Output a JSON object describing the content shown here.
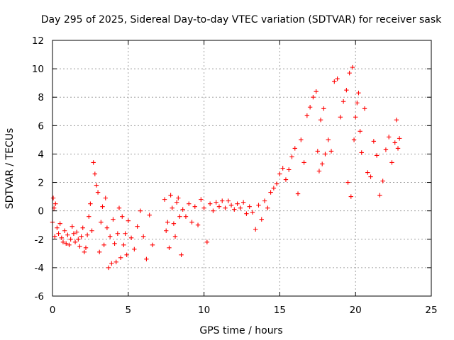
{
  "chart_data": {
    "type": "scatter",
    "title": "Day 295 of 2025, Sidereal Day-to-day VTEC variation (SDTVAR) for receiver sask",
    "xlabel": "GPS time / hours",
    "ylabel": "SDTVAR / TECUs",
    "xlim": [
      0,
      25
    ],
    "ylim": [
      -6,
      12
    ],
    "xticks": [
      0,
      5,
      10,
      15,
      20,
      25
    ],
    "yticks": [
      -6,
      -4,
      -2,
      0,
      2,
      4,
      6,
      8,
      10,
      12
    ],
    "grid": true,
    "marker": "+",
    "color": "#ff0000",
    "series": [
      {
        "name": "SDTVAR",
        "points": [
          [
            0.0,
            -0.8
          ],
          [
            0.05,
            0.9
          ],
          [
            0.1,
            0.2
          ],
          [
            0.15,
            -1.8
          ],
          [
            0.2,
            0.5
          ],
          [
            0.3,
            -1.2
          ],
          [
            0.4,
            -1.6
          ],
          [
            0.5,
            -0.9
          ],
          [
            0.6,
            -1.9
          ],
          [
            0.7,
            -2.2
          ],
          [
            0.8,
            -1.4
          ],
          [
            0.9,
            -2.3
          ],
          [
            1.0,
            -1.7
          ],
          [
            1.1,
            -2.4
          ],
          [
            1.2,
            -2.0
          ],
          [
            1.3,
            -1.1
          ],
          [
            1.4,
            -1.6
          ],
          [
            1.5,
            -2.2
          ],
          [
            1.6,
            -1.5
          ],
          [
            1.7,
            -2.0
          ],
          [
            1.8,
            -2.5
          ],
          [
            1.9,
            -1.8
          ],
          [
            2.0,
            -1.2
          ],
          [
            2.1,
            -2.9
          ],
          [
            2.2,
            -2.6
          ],
          [
            2.3,
            -1.7
          ],
          [
            2.4,
            -0.4
          ],
          [
            2.5,
            0.5
          ],
          [
            2.6,
            -1.4
          ],
          [
            2.7,
            3.4
          ],
          [
            2.8,
            2.6
          ],
          [
            2.9,
            1.8
          ],
          [
            3.0,
            1.3
          ],
          [
            3.1,
            -2.9
          ],
          [
            3.2,
            -0.8
          ],
          [
            3.3,
            0.3
          ],
          [
            3.4,
            -2.4
          ],
          [
            3.5,
            0.9
          ],
          [
            3.6,
            -1.2
          ],
          [
            3.7,
            -4.0
          ],
          [
            3.8,
            -1.8
          ],
          [
            3.9,
            -3.7
          ],
          [
            4.0,
            -0.6
          ],
          [
            4.1,
            -2.3
          ],
          [
            4.2,
            -3.6
          ],
          [
            4.3,
            -1.6
          ],
          [
            4.4,
            0.2
          ],
          [
            4.5,
            -3.3
          ],
          [
            4.6,
            -0.4
          ],
          [
            4.7,
            -2.4
          ],
          [
            4.8,
            -1.6
          ],
          [
            4.9,
            -3.1
          ],
          [
            5.0,
            -0.7
          ],
          [
            5.2,
            -1.9
          ],
          [
            5.4,
            -2.7
          ],
          [
            5.6,
            -1.1
          ],
          [
            5.8,
            0.0
          ],
          [
            6.0,
            -1.8
          ],
          [
            6.2,
            -3.4
          ],
          [
            6.4,
            -0.3
          ],
          [
            6.6,
            -2.4
          ],
          [
            7.4,
            0.8
          ],
          [
            7.5,
            -1.4
          ],
          [
            7.6,
            -0.8
          ],
          [
            7.7,
            -2.6
          ],
          [
            7.8,
            1.1
          ],
          [
            7.9,
            0.2
          ],
          [
            8.0,
            -0.9
          ],
          [
            8.1,
            -1.8
          ],
          [
            8.2,
            0.6
          ],
          [
            8.3,
            0.9
          ],
          [
            8.4,
            -0.4
          ],
          [
            8.5,
            -3.1
          ],
          [
            8.6,
            0.1
          ],
          [
            8.8,
            -0.4
          ],
          [
            9.0,
            0.5
          ],
          [
            9.2,
            -0.8
          ],
          [
            9.4,
            0.3
          ],
          [
            9.6,
            -1.0
          ],
          [
            9.8,
            0.8
          ],
          [
            10.0,
            0.2
          ],
          [
            10.2,
            -2.2
          ],
          [
            10.4,
            0.5
          ],
          [
            10.6,
            0.0
          ],
          [
            10.8,
            0.6
          ],
          [
            11.0,
            0.3
          ],
          [
            11.2,
            0.7
          ],
          [
            11.4,
            0.2
          ],
          [
            11.6,
            0.7
          ],
          [
            11.8,
            0.4
          ],
          [
            12.0,
            0.1
          ],
          [
            12.2,
            0.5
          ],
          [
            12.4,
            0.2
          ],
          [
            12.6,
            0.6
          ],
          [
            12.8,
            -0.2
          ],
          [
            13.0,
            0.3
          ],
          [
            13.2,
            -0.1
          ],
          [
            13.4,
            -1.3
          ],
          [
            13.6,
            0.4
          ],
          [
            13.8,
            -0.6
          ],
          [
            14.0,
            0.7
          ],
          [
            14.2,
            0.2
          ],
          [
            14.4,
            1.3
          ],
          [
            14.6,
            1.6
          ],
          [
            14.8,
            1.9
          ],
          [
            15.0,
            2.6
          ],
          [
            15.2,
            3.0
          ],
          [
            15.4,
            2.2
          ],
          [
            15.6,
            2.9
          ],
          [
            15.8,
            3.8
          ],
          [
            16.0,
            4.4
          ],
          [
            16.2,
            1.2
          ],
          [
            16.4,
            5.0
          ],
          [
            16.6,
            3.4
          ],
          [
            16.8,
            6.7
          ],
          [
            17.0,
            7.3
          ],
          [
            17.2,
            8.0
          ],
          [
            17.4,
            8.4
          ],
          [
            17.5,
            4.2
          ],
          [
            17.6,
            2.8
          ],
          [
            17.7,
            6.4
          ],
          [
            17.8,
            3.3
          ],
          [
            17.9,
            7.2
          ],
          [
            18.0,
            4.0
          ],
          [
            18.2,
            5.0
          ],
          [
            18.4,
            4.2
          ],
          [
            18.6,
            9.1
          ],
          [
            18.8,
            9.3
          ],
          [
            19.0,
            6.6
          ],
          [
            19.2,
            7.7
          ],
          [
            19.4,
            8.5
          ],
          [
            19.5,
            2.0
          ],
          [
            19.6,
            9.7
          ],
          [
            19.7,
            1.0
          ],
          [
            19.8,
            10.1
          ],
          [
            19.9,
            5.0
          ],
          [
            20.0,
            6.6
          ],
          [
            20.1,
            7.6
          ],
          [
            20.2,
            8.3
          ],
          [
            20.3,
            5.6
          ],
          [
            20.4,
            4.1
          ],
          [
            20.6,
            7.2
          ],
          [
            20.8,
            2.7
          ],
          [
            21.0,
            2.4
          ],
          [
            21.2,
            4.9
          ],
          [
            21.4,
            3.9
          ],
          [
            21.6,
            1.1
          ],
          [
            21.8,
            2.1
          ],
          [
            22.0,
            4.3
          ],
          [
            22.2,
            5.2
          ],
          [
            22.4,
            3.4
          ],
          [
            22.6,
            4.8
          ],
          [
            22.7,
            6.4
          ],
          [
            22.8,
            4.4
          ],
          [
            22.9,
            5.1
          ]
        ]
      }
    ]
  }
}
